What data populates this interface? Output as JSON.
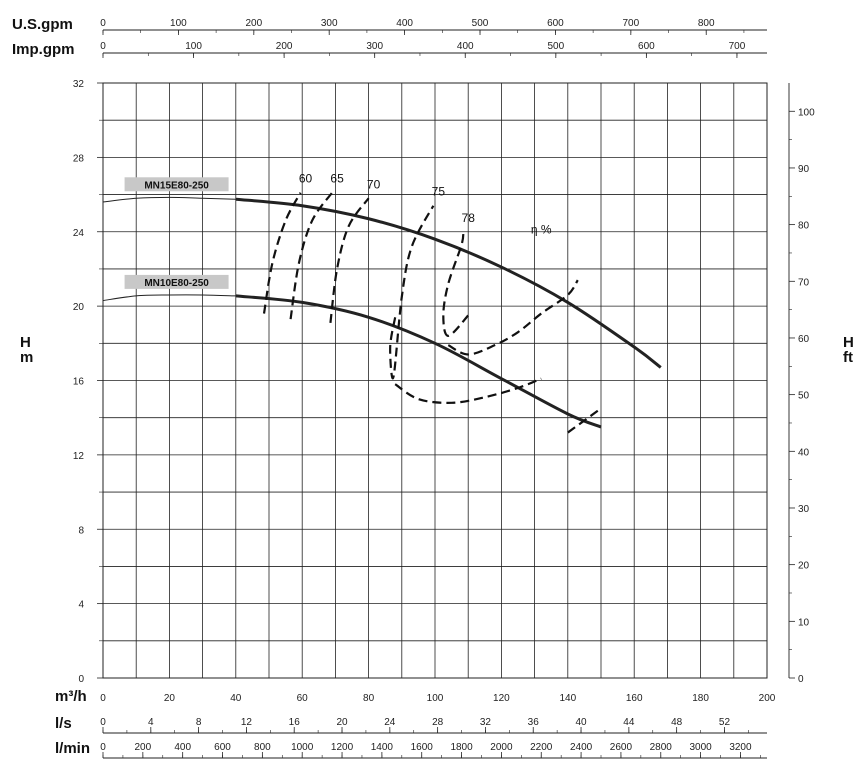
{
  "chart_data": {
    "type": "line",
    "units": {
      "us_gpm": "U.S.gpm",
      "imp_gpm": "Imp.gpm",
      "m3h": "m³/h",
      "ls": "l/s",
      "lmin": "l/min",
      "head_m_top": "H",
      "head_m_bottom": "m",
      "head_ft_top": "H",
      "head_ft_bottom": "ft"
    },
    "x_m3h": {
      "range": [
        0,
        200
      ],
      "ticks": [
        "0",
        "20",
        "40",
        "60",
        "80",
        "100",
        "120",
        "140",
        "160",
        "180",
        "200"
      ]
    },
    "x_ls": {
      "range": [
        0,
        55.56
      ],
      "ticks": [
        "0",
        "4",
        "8",
        "12",
        "16",
        "20",
        "24",
        "28",
        "32",
        "36",
        "40",
        "44",
        "48",
        "52"
      ]
    },
    "x_lmin": {
      "range": [
        0,
        3333.3
      ],
      "ticks": [
        "0",
        "200",
        "400",
        "600",
        "800",
        "1000",
        "1200",
        "1400",
        "1600",
        "1800",
        "2000",
        "2200",
        "2400",
        "2600",
        "2800",
        "3000",
        "3200"
      ]
    },
    "x_usgpm": {
      "range": [
        0,
        880.6
      ],
      "ticks": [
        "0",
        "100",
        "200",
        "300",
        "400",
        "500",
        "600",
        "700",
        "800"
      ]
    },
    "x_impgpm": {
      "range": [
        0,
        733.2
      ],
      "ticks": [
        "0",
        "100",
        "200",
        "300",
        "400",
        "500",
        "600",
        "700"
      ]
    },
    "y_m": {
      "range": [
        0,
        32
      ],
      "ticks": [
        "0",
        "4",
        "8",
        "12",
        "16",
        "20",
        "24",
        "28",
        "32"
      ]
    },
    "y_ft": {
      "range": [
        0,
        104.99
      ],
      "ticks": [
        "0",
        "10",
        "20",
        "30",
        "40",
        "50",
        "60",
        "70",
        "80",
        "90",
        "100"
      ]
    },
    "grid": true,
    "series": [
      {
        "name": "MN15E80-250",
        "x": [
          0,
          10,
          20,
          30,
          40,
          60,
          80,
          100,
          120,
          140,
          160,
          168
        ],
        "y": [
          25.6,
          25.8,
          25.85,
          25.8,
          25.75,
          25.4,
          24.7,
          23.6,
          22.1,
          20.2,
          17.8,
          16.7
        ]
      },
      {
        "name": "MN10E80-250",
        "x": [
          0,
          10,
          20,
          30,
          40,
          60,
          80,
          100,
          120,
          140,
          150
        ],
        "y": [
          20.3,
          20.55,
          20.6,
          20.6,
          20.55,
          20.2,
          19.4,
          18.0,
          16.1,
          14.2,
          13.5
        ]
      }
    ],
    "efficiency": {
      "label": "η %",
      "curves": [
        {
          "name": "60",
          "x": [
            48.5,
            51,
            55,
            59.5
          ],
          "y": [
            19.6,
            22.3,
            24.6,
            26.1
          ]
        },
        {
          "name": "65",
          "x": [
            56.5,
            59,
            63,
            69
          ],
          "y": [
            19.3,
            22.3,
            24.6,
            26.1
          ]
        },
        {
          "name": "70",
          "x": [
            68.5,
            70.5,
            74,
            80
          ],
          "y": [
            19.1,
            22.0,
            24.3,
            25.8
          ]
        },
        {
          "name": "75",
          "x": [
            88,
            86.5,
            87.5,
            90,
            93,
            99.5
          ],
          "y": [
            19.4,
            17.8,
            16.2,
            20.5,
            23.2,
            25.4
          ]
        },
        {
          "name": "78",
          "x": [
            110,
            104,
            102.5,
            104,
            108,
            108.5
          ],
          "y": [
            19.5,
            18.4,
            19.5,
            21.2,
            23.3,
            24.0
          ]
        }
      ],
      "lower_branch_75": {
        "x": [
          88,
          95,
          105,
          115,
          125,
          132
        ],
        "y": [
          15.8,
          15.0,
          14.8,
          15.1,
          15.6,
          16.1
        ]
      },
      "lower_branch_78": {
        "x": [
          104,
          110,
          118,
          125,
          132,
          140,
          143
        ],
        "y": [
          17.9,
          17.4,
          17.9,
          18.6,
          19.6,
          20.6,
          21.4
        ]
      },
      "tail": {
        "x": [
          140,
          150
        ],
        "y": [
          13.2,
          14.5
        ]
      },
      "label_positions_text": [
        "60",
        "65",
        "70",
        "75",
        "78"
      ]
    }
  }
}
